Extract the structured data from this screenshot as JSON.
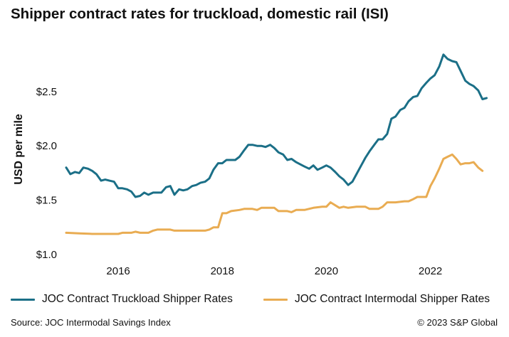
{
  "title": "Shipper contract rates for truckload, domestic rail (ISI)",
  "source": "Source: JOC Intermodal Savings Index",
  "copyright": "© 2023 S&P Global",
  "chart_data": {
    "type": "line",
    "title": "Shipper contract rates for truckload, domestic rail (ISI)",
    "ylabel": "USD per mile",
    "xlabel": "",
    "xlim": [
      2015.0,
      2023.1
    ],
    "ylim": [
      1.0,
      2.95
    ],
    "yticks": [
      1.0,
      1.5,
      2.0,
      2.5
    ],
    "ytick_labels": [
      "$1.0",
      "$1.5",
      "$2.0",
      "$2.5"
    ],
    "xticks": [
      2016,
      2018,
      2020,
      2022
    ],
    "xtick_labels": [
      "2016",
      "2018",
      "2020",
      "2022"
    ],
    "grid": false,
    "legend_position": "bottom",
    "series": [
      {
        "name": "JOC Contract Truckload Shipper Rates",
        "color": "#1b6f87",
        "points": [
          [
            2015.0,
            1.8
          ],
          [
            2015.08,
            1.74
          ],
          [
            2015.17,
            1.76
          ],
          [
            2015.25,
            1.75
          ],
          [
            2015.33,
            1.8
          ],
          [
            2015.42,
            1.79
          ],
          [
            2015.5,
            1.77
          ],
          [
            2015.58,
            1.74
          ],
          [
            2015.67,
            1.68
          ],
          [
            2015.75,
            1.69
          ],
          [
            2015.83,
            1.68
          ],
          [
            2015.92,
            1.67
          ],
          [
            2016.0,
            1.61
          ],
          [
            2016.08,
            1.61
          ],
          [
            2016.17,
            1.6
          ],
          [
            2016.25,
            1.58
          ],
          [
            2016.33,
            1.53
          ],
          [
            2016.42,
            1.54
          ],
          [
            2016.5,
            1.57
          ],
          [
            2016.58,
            1.55
          ],
          [
            2016.67,
            1.57
          ],
          [
            2016.75,
            1.57
          ],
          [
            2016.83,
            1.57
          ],
          [
            2016.92,
            1.62
          ],
          [
            2017.0,
            1.63
          ],
          [
            2017.08,
            1.55
          ],
          [
            2017.17,
            1.6
          ],
          [
            2017.25,
            1.59
          ],
          [
            2017.33,
            1.6
          ],
          [
            2017.42,
            1.63
          ],
          [
            2017.5,
            1.64
          ],
          [
            2017.58,
            1.66
          ],
          [
            2017.67,
            1.67
          ],
          [
            2017.75,
            1.7
          ],
          [
            2017.83,
            1.78
          ],
          [
            2017.92,
            1.84
          ],
          [
            2018.0,
            1.84
          ],
          [
            2018.08,
            1.87
          ],
          [
            2018.17,
            1.87
          ],
          [
            2018.25,
            1.87
          ],
          [
            2018.33,
            1.9
          ],
          [
            2018.42,
            1.96
          ],
          [
            2018.5,
            2.01
          ],
          [
            2018.58,
            2.01
          ],
          [
            2018.67,
            2.0
          ],
          [
            2018.75,
            2.0
          ],
          [
            2018.83,
            1.99
          ],
          [
            2018.92,
            2.01
          ],
          [
            2019.0,
            1.98
          ],
          [
            2019.08,
            1.94
          ],
          [
            2019.17,
            1.92
          ],
          [
            2019.25,
            1.87
          ],
          [
            2019.33,
            1.88
          ],
          [
            2019.42,
            1.85
          ],
          [
            2019.5,
            1.83
          ],
          [
            2019.58,
            1.81
          ],
          [
            2019.67,
            1.79
          ],
          [
            2019.75,
            1.82
          ],
          [
            2019.83,
            1.78
          ],
          [
            2019.92,
            1.8
          ],
          [
            2020.0,
            1.82
          ],
          [
            2020.08,
            1.8
          ],
          [
            2020.17,
            1.76
          ],
          [
            2020.25,
            1.72
          ],
          [
            2020.33,
            1.69
          ],
          [
            2020.42,
            1.64
          ],
          [
            2020.5,
            1.67
          ],
          [
            2020.58,
            1.74
          ],
          [
            2020.67,
            1.82
          ],
          [
            2020.75,
            1.89
          ],
          [
            2020.83,
            1.95
          ],
          [
            2020.92,
            2.01
          ],
          [
            2021.0,
            2.06
          ],
          [
            2021.08,
            2.06
          ],
          [
            2021.17,
            2.11
          ],
          [
            2021.25,
            2.25
          ],
          [
            2021.33,
            2.27
          ],
          [
            2021.42,
            2.33
          ],
          [
            2021.5,
            2.35
          ],
          [
            2021.58,
            2.41
          ],
          [
            2021.67,
            2.45
          ],
          [
            2021.75,
            2.46
          ],
          [
            2021.83,
            2.53
          ],
          [
            2021.92,
            2.58
          ],
          [
            2022.0,
            2.62
          ],
          [
            2022.08,
            2.65
          ],
          [
            2022.17,
            2.73
          ],
          [
            2022.25,
            2.84
          ],
          [
            2022.33,
            2.8
          ],
          [
            2022.42,
            2.78
          ],
          [
            2022.5,
            2.77
          ],
          [
            2022.58,
            2.69
          ],
          [
            2022.67,
            2.6
          ],
          [
            2022.75,
            2.57
          ],
          [
            2022.83,
            2.55
          ],
          [
            2022.92,
            2.51
          ],
          [
            2023.0,
            2.43
          ],
          [
            2023.08,
            2.44
          ]
        ]
      },
      {
        "name": "JOC Contract Intermodal Shipper Rates",
        "color": "#e9ac52",
        "points": [
          [
            2015.0,
            1.2
          ],
          [
            2015.25,
            1.195
          ],
          [
            2015.5,
            1.19
          ],
          [
            2015.75,
            1.19
          ],
          [
            2016.0,
            1.19
          ],
          [
            2016.08,
            1.2
          ],
          [
            2016.25,
            1.2
          ],
          [
            2016.33,
            1.21
          ],
          [
            2016.42,
            1.2
          ],
          [
            2016.58,
            1.2
          ],
          [
            2016.67,
            1.22
          ],
          [
            2016.75,
            1.23
          ],
          [
            2017.0,
            1.23
          ],
          [
            2017.08,
            1.22
          ],
          [
            2017.5,
            1.22
          ],
          [
            2017.67,
            1.22
          ],
          [
            2017.75,
            1.23
          ],
          [
            2017.83,
            1.25
          ],
          [
            2017.92,
            1.25
          ],
          [
            2018.0,
            1.38
          ],
          [
            2018.08,
            1.38
          ],
          [
            2018.17,
            1.4
          ],
          [
            2018.33,
            1.41
          ],
          [
            2018.42,
            1.42
          ],
          [
            2018.58,
            1.42
          ],
          [
            2018.67,
            1.41
          ],
          [
            2018.75,
            1.43
          ],
          [
            2019.0,
            1.43
          ],
          [
            2019.08,
            1.4
          ],
          [
            2019.25,
            1.4
          ],
          [
            2019.33,
            1.39
          ],
          [
            2019.42,
            1.41
          ],
          [
            2019.58,
            1.41
          ],
          [
            2019.75,
            1.43
          ],
          [
            2019.92,
            1.44
          ],
          [
            2020.0,
            1.44
          ],
          [
            2020.08,
            1.48
          ],
          [
            2020.25,
            1.43
          ],
          [
            2020.33,
            1.44
          ],
          [
            2020.42,
            1.43
          ],
          [
            2020.58,
            1.44
          ],
          [
            2020.75,
            1.44
          ],
          [
            2020.83,
            1.42
          ],
          [
            2021.0,
            1.42
          ],
          [
            2021.08,
            1.44
          ],
          [
            2021.17,
            1.48
          ],
          [
            2021.33,
            1.48
          ],
          [
            2021.5,
            1.49
          ],
          [
            2021.58,
            1.49
          ],
          [
            2021.67,
            1.51
          ],
          [
            2021.75,
            1.53
          ],
          [
            2021.92,
            1.53
          ],
          [
            2022.0,
            1.63
          ],
          [
            2022.08,
            1.7
          ],
          [
            2022.17,
            1.79
          ],
          [
            2022.25,
            1.88
          ],
          [
            2022.33,
            1.9
          ],
          [
            2022.42,
            1.92
          ],
          [
            2022.5,
            1.88
          ],
          [
            2022.58,
            1.83
          ],
          [
            2022.67,
            1.84
          ],
          [
            2022.75,
            1.84
          ],
          [
            2022.83,
            1.85
          ],
          [
            2022.92,
            1.8
          ],
          [
            2023.0,
            1.77
          ]
        ]
      }
    ]
  }
}
